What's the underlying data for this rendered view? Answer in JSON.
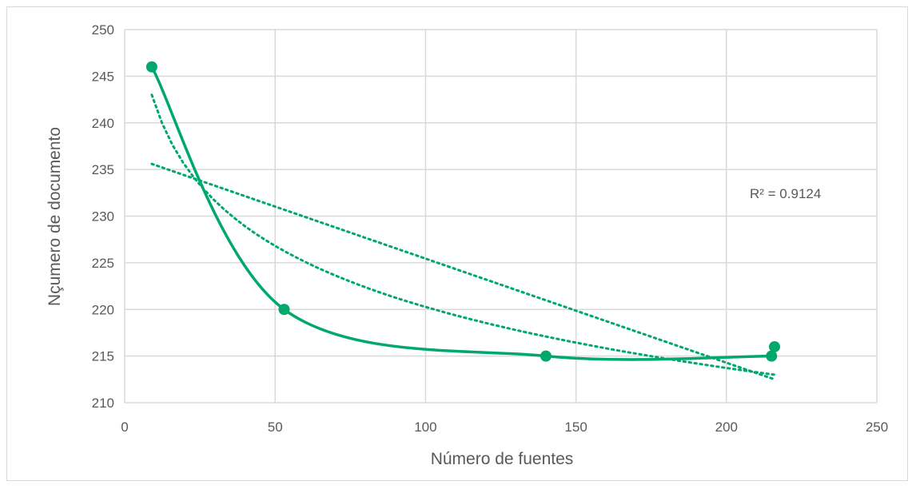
{
  "chart_data": {
    "type": "scatter",
    "title": "",
    "xlabel": "Número de fuentes",
    "ylabel": "Nçumero de documento",
    "xlim": [
      0,
      250
    ],
    "ylim": [
      210,
      250
    ],
    "x_ticks": [
      "0",
      "50",
      "100",
      "150",
      "200",
      "250"
    ],
    "y_ticks": [
      "210",
      "215",
      "220",
      "225",
      "230",
      "235",
      "240",
      "245",
      "250"
    ],
    "grid": true,
    "legend": "none",
    "series": [
      {
        "points": [
          {
            "x": 9,
            "y": 246
          },
          {
            "x": 53,
            "y": 220
          },
          {
            "x": 140,
            "y": 215
          },
          {
            "x": 215,
            "y": 215
          },
          {
            "x": 216,
            "y": 216
          }
        ],
        "color": "#00a86b",
        "style": "smoothed line with markers"
      }
    ],
    "trendlines": [
      {
        "kind": "linear",
        "x": [
          9,
          216
        ],
        "y": [
          235.6,
          212.5
        ],
        "style": "dotted",
        "color": "#00a86b"
      },
      {
        "kind": "logarithmic",
        "x": [
          9,
          216
        ],
        "y": [
          243,
          213
        ],
        "style": "dotted",
        "color": "#00a86b"
      }
    ],
    "annotations": [
      {
        "text": "R² = 0.9124"
      }
    ]
  }
}
